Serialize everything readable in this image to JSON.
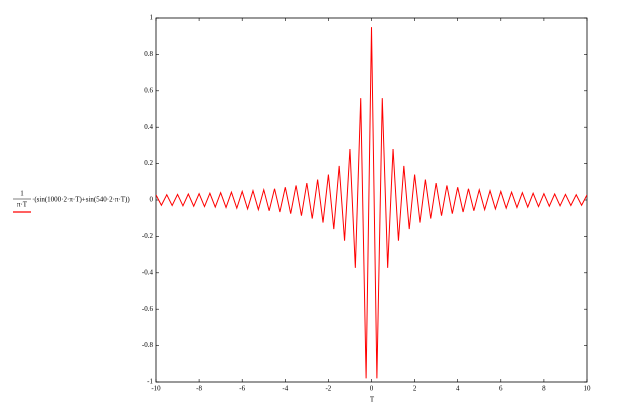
{
  "chart_data": {
    "type": "line",
    "ylabel": {
      "numerator": "1",
      "denominator": "π·T",
      "rest": "·(sin(1000·2·π·T)+sin(540·2·π·T))"
    },
    "xlabel": "T",
    "color": "#ff0000",
    "x": [
      -10,
      -9.75,
      -9.5,
      -9.25,
      -9,
      -8.75,
      -8.5,
      -8.25,
      -8,
      -7.75,
      -7.5,
      -7.25,
      -7,
      -6.75,
      -6.5,
      -6.25,
      -6,
      -5.75,
      -5.5,
      -5.25,
      -5,
      -4.75,
      -4.5,
      -4.25,
      -4,
      -3.75,
      -3.5,
      -3.25,
      -3,
      -2.75,
      -2.5,
      -2.25,
      -2,
      -1.75,
      -1.5,
      -1.25,
      -1,
      -0.75,
      -0.5,
      -0.25,
      0,
      0.25,
      0.5,
      0.75,
      1,
      1.25,
      1.5,
      1.75,
      2,
      2.25,
      2.5,
      2.75,
      3,
      3.25,
      3.5,
      3.75,
      4,
      4.25,
      4.5,
      4.75,
      5,
      5.25,
      5.5,
      5.75,
      6,
      6.25,
      6.5,
      6.75,
      7,
      7.25,
      7.5,
      7.75,
      8,
      8.25,
      8.5,
      8.75,
      9,
      9.25,
      9.5,
      9.75,
      10
    ],
    "values": [
      0.028,
      -0.029,
      0.029,
      -0.03,
      0.031,
      -0.032,
      0.033,
      -0.034,
      0.035,
      -0.036,
      0.037,
      -0.039,
      0.04,
      -0.041,
      0.043,
      -0.045,
      0.047,
      -0.049,
      0.051,
      -0.053,
      0.056,
      -0.059,
      0.062,
      -0.066,
      0.07,
      -0.075,
      0.08,
      -0.086,
      0.093,
      -0.102,
      0.112,
      -0.124,
      0.14,
      -0.16,
      0.187,
      -0.224,
      0.28,
      -0.373,
      0.56,
      -0.98,
      0.95,
      -0.98,
      0.56,
      -0.373,
      0.28,
      -0.224,
      0.187,
      -0.16,
      0.14,
      -0.124,
      0.112,
      -0.102,
      0.093,
      -0.086,
      0.08,
      -0.075,
      0.07,
      -0.066,
      0.062,
      -0.059,
      0.056,
      -0.053,
      0.051,
      -0.049,
      0.047,
      -0.045,
      0.043,
      -0.041,
      0.04,
      -0.039,
      0.037,
      -0.036,
      0.035,
      -0.034,
      0.033,
      -0.032,
      0.031,
      -0.03,
      0.029,
      -0.029,
      0.028
    ],
    "xlim": [
      -10,
      10
    ],
    "xticks": [
      -10,
      -8,
      -6,
      -4,
      -2,
      0,
      2,
      4,
      6,
      8,
      10
    ],
    "ylim": [
      -1,
      1
    ],
    "yticks": [
      -1,
      -0.8,
      -0.6,
      -0.4,
      -0.2,
      0,
      0.2,
      0.4,
      0.6,
      0.8,
      1
    ],
    "grid": false
  }
}
